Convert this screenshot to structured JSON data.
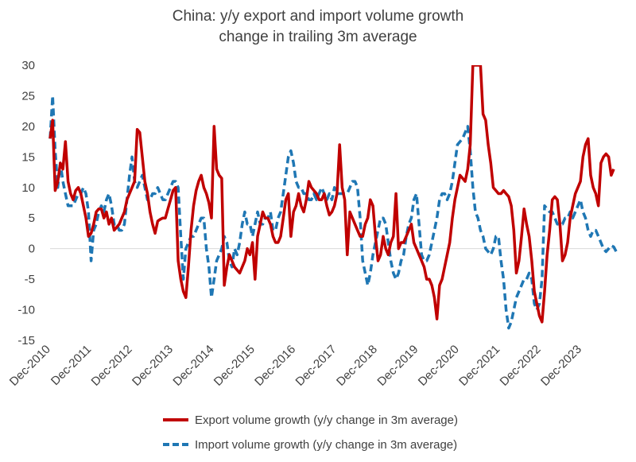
{
  "chart_data": {
    "type": "line",
    "title_lines": [
      "China: y/y export and import volume growth",
      "change in trailing 3m average"
    ],
    "xlabel": "",
    "ylabel": "",
    "ylim": [
      -15,
      30
    ],
    "yticks": [
      "30",
      "25",
      "20",
      "15",
      "10",
      "5",
      "0",
      "-5",
      "-10",
      "-15"
    ],
    "xticks": [
      "Dec-2010",
      "Dec-2011",
      "Dec-2012",
      "Dec-2013",
      "Dec-2014",
      "Dec-2015",
      "Dec-2016",
      "Dec-2017",
      "Dec-2018",
      "Dec-2019",
      "Dec-2020",
      "Dec-2021",
      "Dec-2022",
      "Dec-2023"
    ],
    "x_start": "Dec-2010",
    "x_end": "Jun-2024",
    "grid": false,
    "legend_position": "bottom",
    "series": [
      {
        "name": "Export volume growth (y/y change in 3m average)",
        "color": "#c00000",
        "style": "solid",
        "values": [
          18,
          21,
          9.5,
          11,
          14,
          13,
          17.5,
          11,
          9,
          8,
          9.5,
          10,
          9,
          7,
          5,
          2,
          2.5,
          4,
          6,
          6.5,
          6.5,
          5,
          6,
          4,
          5,
          3,
          3.5,
          4,
          5,
          6,
          8,
          9,
          10,
          11,
          19.5,
          19,
          15,
          11,
          9,
          6,
          4,
          2.5,
          4.5,
          4.8,
          5,
          5,
          6.5,
          8,
          9.5,
          10,
          -2,
          -5,
          -7,
          -8,
          -3,
          3,
          7,
          9.5,
          11,
          12,
          10,
          9,
          7.5,
          5,
          20,
          13,
          12,
          11.5,
          -6,
          -3,
          -1,
          -2,
          -3,
          -3.5,
          -4,
          -3,
          -2,
          0,
          -1,
          1,
          -5,
          2,
          4,
          6,
          5,
          5,
          4,
          2,
          1,
          1,
          2,
          5,
          8,
          9,
          2,
          6,
          7,
          9,
          7,
          6,
          8,
          11,
          10,
          9.5,
          9,
          8,
          8,
          9,
          7,
          5.5,
          6,
          7,
          9,
          17,
          10,
          8,
          -1,
          6,
          5,
          4,
          3,
          2,
          2,
          4,
          5,
          8,
          7,
          2,
          -2,
          -1,
          2,
          0,
          -1,
          1,
          2,
          9,
          0,
          1,
          1,
          2,
          3,
          4,
          1,
          0,
          -1,
          -2,
          -3,
          -5,
          -5,
          -6,
          -8,
          -11.5,
          -6,
          -5,
          -3,
          -1,
          1,
          5,
          8,
          10,
          12,
          11.5,
          11,
          13,
          17,
          30,
          30,
          30,
          30,
          22,
          21,
          17,
          14,
          10,
          9.5,
          9,
          9,
          9.5,
          9,
          8.5,
          7,
          3,
          -4,
          -2,
          2,
          6.5,
          4,
          2,
          -2,
          -7,
          -9,
          -11,
          -12,
          -7,
          -1,
          3,
          8,
          8.5,
          8,
          4,
          -2,
          -1,
          1,
          5,
          7,
          9,
          10,
          11,
          15,
          17,
          18,
          12,
          10,
          9,
          7,
          14,
          15,
          15.5,
          15,
          12,
          13
        ],
        "note_clipped_top": true
      },
      {
        "name": "Import volume growth (y/y change in 3m average)",
        "color": "#1f77b4",
        "style": "dashed",
        "values": [
          18,
          25,
          16,
          10,
          14,
          11,
          9,
          7,
          7,
          7,
          8,
          9,
          9,
          10,
          9,
          6,
          -2,
          3,
          4,
          6,
          7,
          6,
          8,
          9,
          7,
          4,
          4,
          3,
          3,
          4,
          8,
          12,
          15,
          11,
          10,
          11,
          12,
          10,
          8,
          8,
          9,
          9,
          10,
          9,
          8,
          8,
          9,
          10,
          11,
          11,
          10,
          2,
          -5,
          0,
          1,
          2,
          2,
          3,
          4,
          5,
          5,
          0,
          -3,
          -8,
          -5,
          -2,
          -1,
          0,
          2,
          1,
          -2,
          -3,
          0,
          -1,
          1,
          4,
          6,
          4,
          4,
          2,
          4,
          6,
          4,
          4,
          5,
          5,
          6,
          3,
          3,
          5,
          6,
          9,
          12,
          15,
          16,
          14,
          11,
          10,
          10,
          9,
          9,
          8,
          8,
          9,
          8,
          9,
          10,
          9,
          8,
          9,
          8,
          10,
          9,
          9,
          9,
          9,
          9,
          10,
          11,
          11,
          10,
          5,
          -2,
          -4,
          -6,
          -4,
          -1,
          1,
          3,
          5,
          5,
          4,
          1,
          -2,
          -4,
          -5,
          -4,
          -2,
          -1,
          2,
          4,
          5,
          8,
          9,
          4,
          -1,
          -2,
          -2,
          -1,
          1,
          3,
          5,
          8,
          9,
          9,
          8,
          9,
          11,
          14,
          17,
          17.5,
          18,
          19,
          20,
          16,
          10,
          6,
          5,
          3,
          2,
          0,
          -0.5,
          -1,
          0,
          2,
          2,
          -2,
          -5,
          -10,
          -13,
          -12,
          -10,
          -8,
          -7,
          -6,
          -5,
          -5,
          -4,
          -5,
          -9,
          -10,
          -9,
          -5,
          7,
          6.5,
          6,
          6,
          5,
          4,
          4,
          4,
          5,
          5,
          6,
          5,
          6,
          7,
          8,
          6,
          5,
          3,
          2,
          3,
          3,
          2,
          1,
          0,
          -0.5,
          0,
          0.5,
          0.3,
          -0.5
        ]
      }
    ]
  }
}
